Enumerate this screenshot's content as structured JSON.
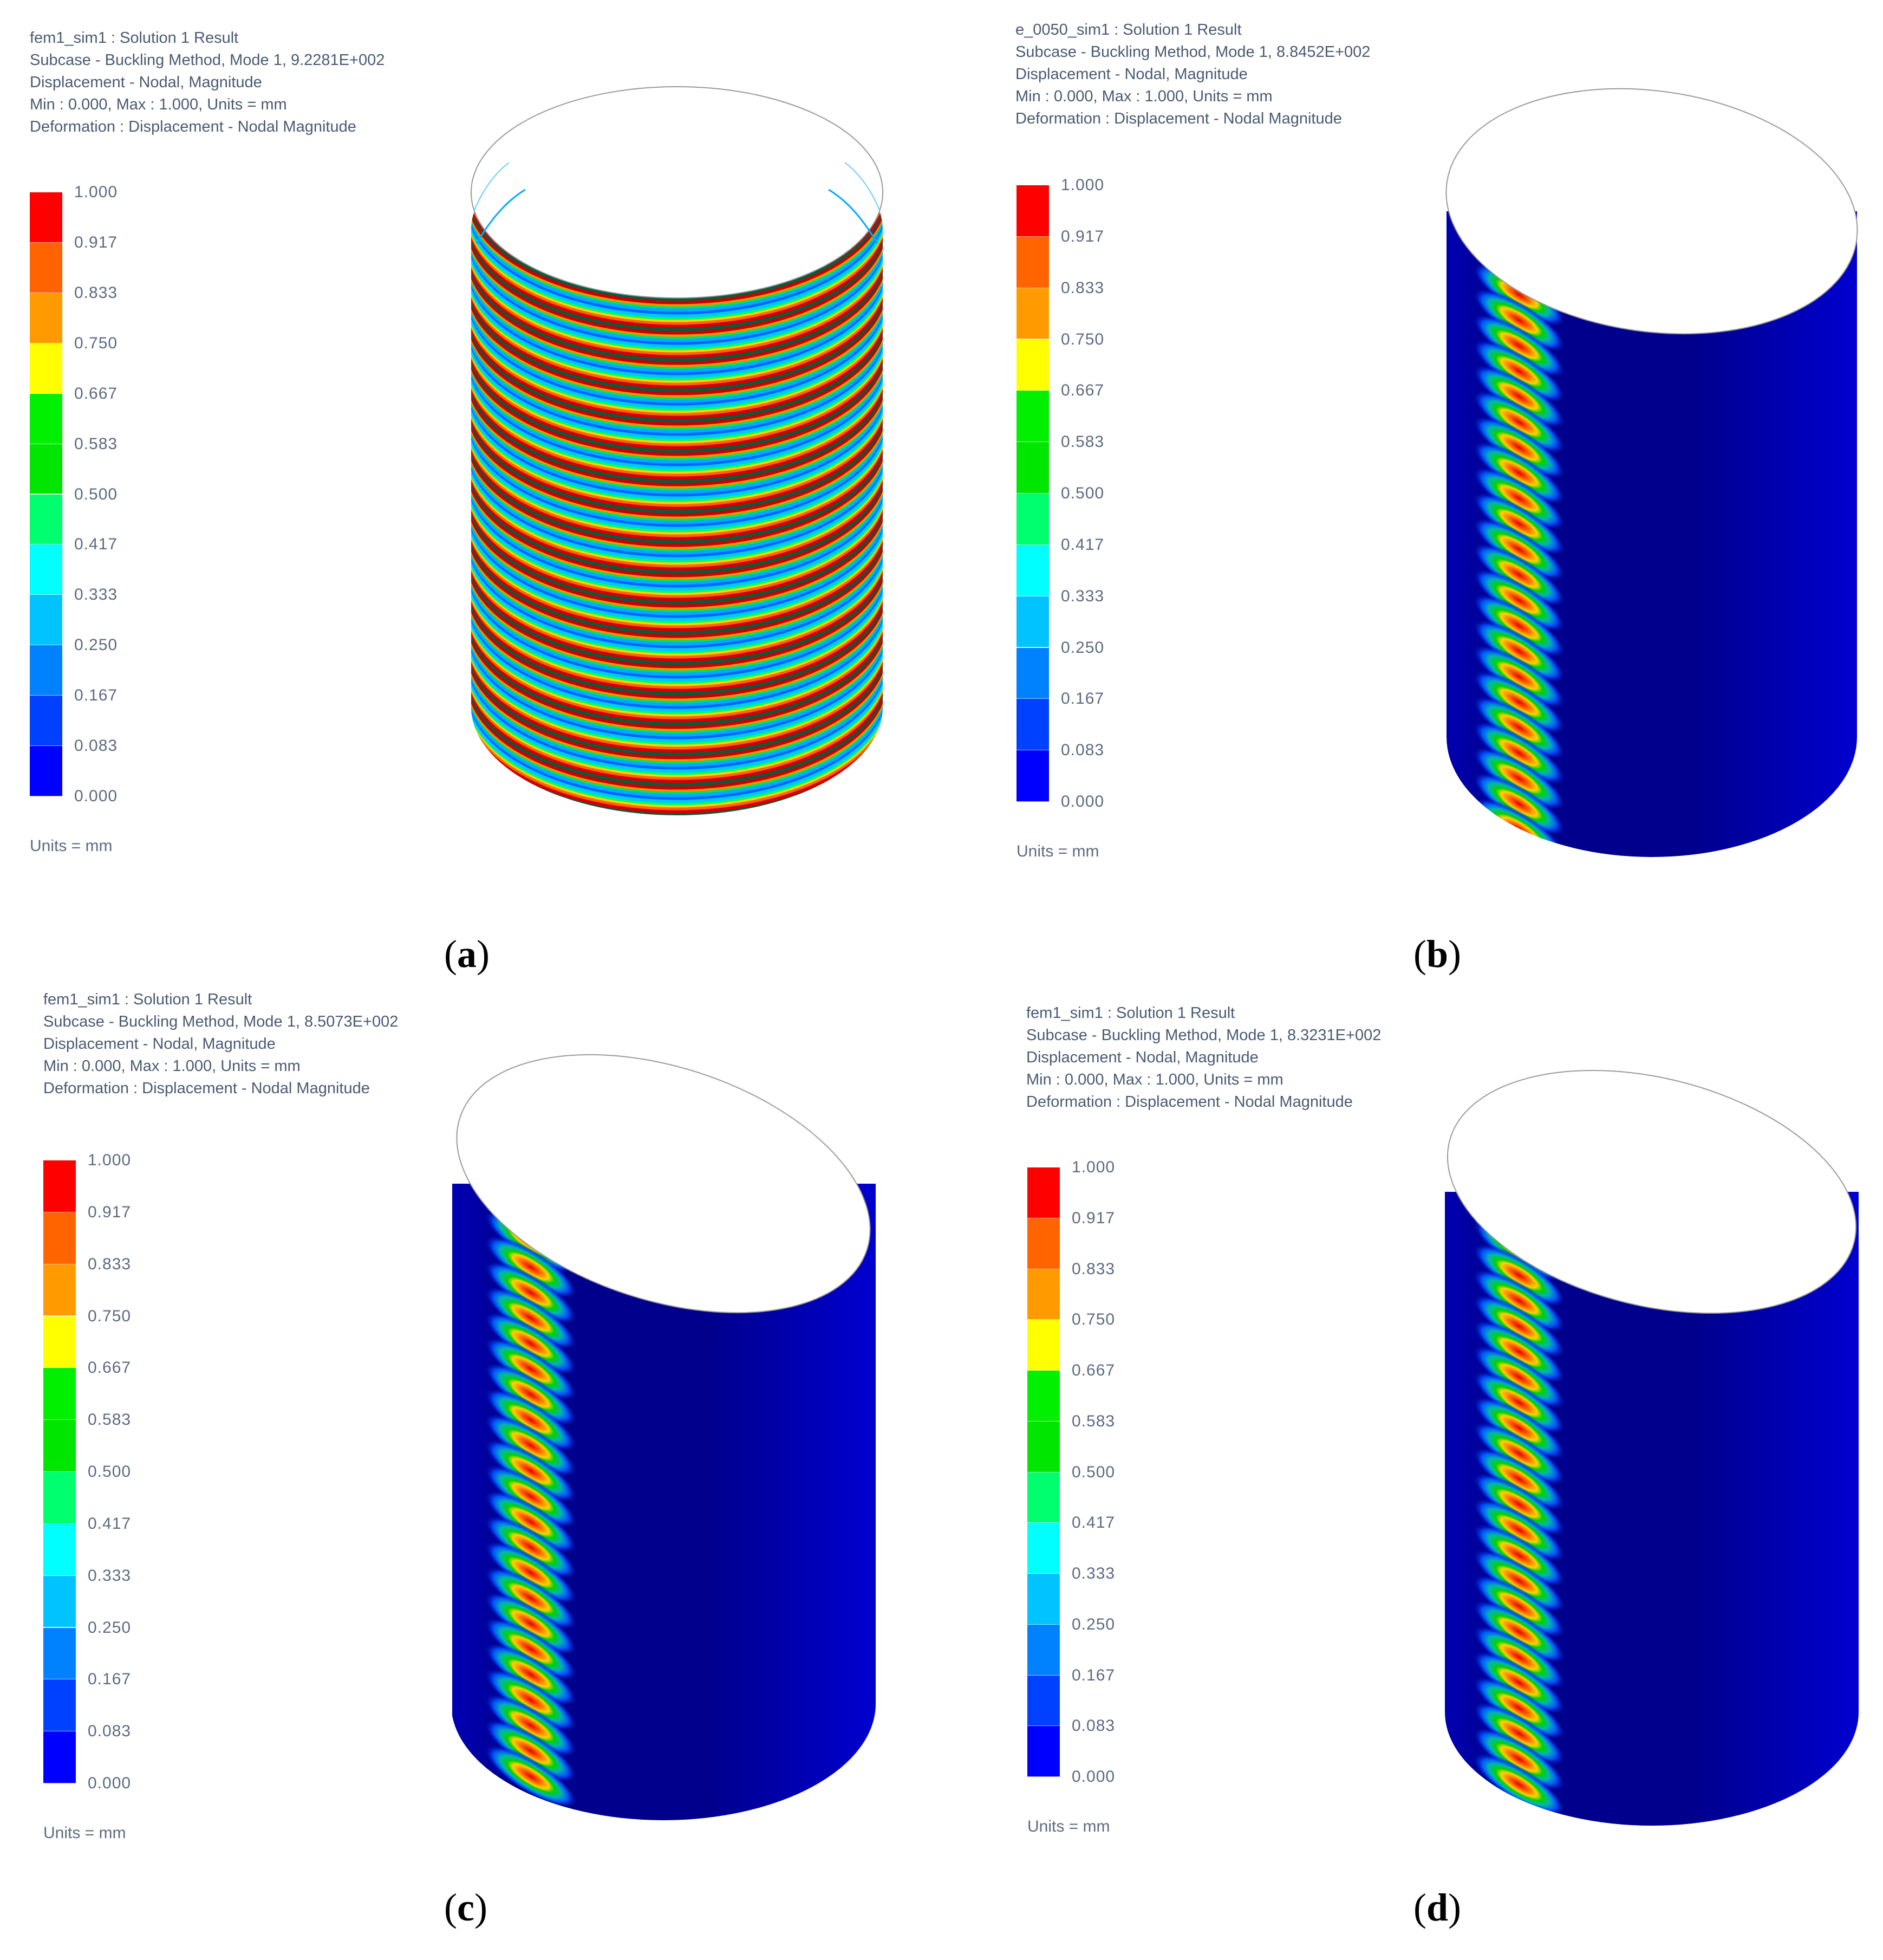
{
  "figure": {
    "panels": [
      {
        "id": "a",
        "caption_letter": "a",
        "header": {
          "line1": "fem1_sim1 : Solution 1 Result",
          "line2": "Subcase - Buckling Method, Mode 1, 9.2281E+002",
          "line3": "Displacement - Nodal, Magnitude",
          "line4": "Min : 0.000, Max : 1.000, Units = mm",
          "line5": "Deformation : Displacement - Nodal Magnitude"
        },
        "units_label": "Units = mm",
        "model": "cylinder-axisymmetric-ring-buckling"
      },
      {
        "id": "b",
        "caption_letter": "b",
        "header": {
          "line1": "e_0050_sim1 : Solution 1 Result",
          "line2": "Subcase - Buckling Method, Mode 1, 8.8452E+002",
          "line3": "Displacement - Nodal, Magnitude",
          "line4": "Min : 0.000, Max : 1.000, Units = mm",
          "line5": "Deformation : Displacement - Nodal Magnitude"
        },
        "units_label": "Units = mm",
        "model": "cylinder-localized-diagonal-buckling"
      },
      {
        "id": "c",
        "caption_letter": "c",
        "header": {
          "line1": "fem1_sim1 : Solution 1 Result",
          "line2": "Subcase - Buckling Method, Mode 1, 8.5073E+002",
          "line3": "Displacement - Nodal, Magnitude",
          "line4": "Min : 0.000, Max : 1.000, Units = mm",
          "line5": "Deformation : Displacement - Nodal Magnitude"
        },
        "units_label": "Units = mm",
        "model": "cylinder-localized-diagonal-buckling"
      },
      {
        "id": "d",
        "caption_letter": "d",
        "header": {
          "line1": "fem1_sim1 : Solution 1 Result",
          "line2": "Subcase - Buckling Method, Mode 1, 8.3231E+002",
          "line3": "Displacement - Nodal, Magnitude",
          "line4": "Min : 0.000, Max : 1.000, Units = mm",
          "line5": "Deformation : Displacement - Nodal Magnitude"
        },
        "units_label": "Units = mm",
        "model": "cylinder-localized-diagonal-buckling"
      }
    ],
    "legend": {
      "ticks": [
        "1.000",
        "0.917",
        "0.833",
        "0.750",
        "0.667",
        "0.583",
        "0.500",
        "0.417",
        "0.333",
        "0.250",
        "0.167",
        "0.083",
        "0.000"
      ],
      "band_colors": [
        "#ff0000",
        "#ff6400",
        "#ff9b00",
        "#ffff00",
        "#00f000",
        "#00e600",
        "#00ff6e",
        "#00ffff",
        "#00c3ff",
        "#0082ff",
        "#0041ff",
        "#0000ff"
      ]
    },
    "colors": {
      "shell_dark": "#00008c",
      "shell_light": "#0000d2",
      "text": "#4a5a72"
    }
  }
}
